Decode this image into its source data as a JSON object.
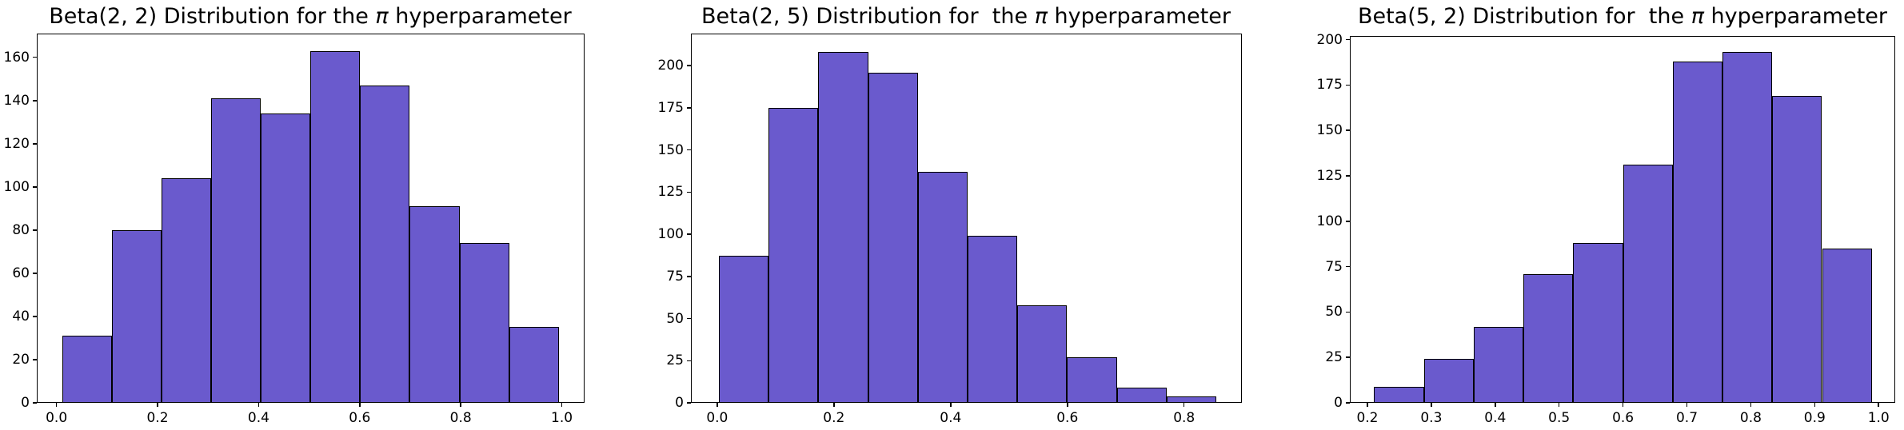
{
  "figure": {
    "background": "#ffffff",
    "text_color": "#000000"
  },
  "chart_data": [
    {
      "type": "bar",
      "chart_kind": "histogram",
      "title": "Beta(2, 2) Distribution for the π hyperparameter",
      "title_pre": "Beta(2, 2) Distribution for the ",
      "title_pi": "π",
      "title_post": " hyperparameter",
      "bar_color": "#6A5ACD",
      "bar_edge_color": "#000000",
      "bin_start": 0.011,
      "bin_width": 0.0983,
      "values": [
        31,
        80,
        104,
        141,
        134,
        163,
        147,
        91,
        74,
        35
      ],
      "x_ticks": [
        0.0,
        0.2,
        0.4,
        0.6,
        0.8,
        1.0
      ],
      "x_tick_labels": [
        "0.0",
        "0.2",
        "0.4",
        "0.6",
        "0.8",
        "1.0"
      ],
      "y_ticks": [
        0,
        20,
        40,
        60,
        80,
        100,
        120,
        140,
        160
      ],
      "xlim": [
        -0.039,
        1.045
      ],
      "ylim": [
        0,
        171
      ],
      "grid": false,
      "legend": null
    },
    {
      "type": "bar",
      "chart_kind": "histogram",
      "title": "Beta(2, 5) Distribution for  the π hyperparameter",
      "title_pre": "Beta(2, 5) Distribution for  the ",
      "title_pi": "π",
      "title_post": " hyperparameter",
      "bar_color": "#6A5ACD",
      "bar_edge_color": "#000000",
      "bin_start": 0.003,
      "bin_width": 0.0852,
      "values": [
        87,
        175,
        208,
        196,
        137,
        99,
        58,
        27,
        9,
        4
      ],
      "x_ticks": [
        0.0,
        0.2,
        0.4,
        0.6,
        0.8
      ],
      "x_tick_labels": [
        "0.0",
        "0.2",
        "0.4",
        "0.6",
        "0.8"
      ],
      "y_ticks": [
        0,
        25,
        50,
        75,
        100,
        125,
        150,
        175,
        200
      ],
      "xlim": [
        -0.045,
        0.899
      ],
      "ylim": [
        0,
        219
      ],
      "grid": false,
      "legend": null
    },
    {
      "type": "bar",
      "chart_kind": "histogram",
      "title": "Beta(5, 2) Distribution for  the π hyperparameter",
      "title_pre": "Beta(5, 2) Distribution for  the ",
      "title_pi": "π",
      "title_post": " hyperparameter",
      "bar_color": "#6A5ACD",
      "bar_edge_color": "#000000",
      "bin_start": 0.2104,
      "bin_width": 0.0779,
      "values": [
        9,
        24,
        42,
        71,
        88,
        131,
        188,
        193,
        169,
        85
      ],
      "x_ticks": [
        0.2,
        0.3,
        0.4,
        0.5,
        0.6,
        0.7,
        0.8,
        0.9,
        1.0
      ],
      "x_tick_labels": [
        "0.2",
        "0.3",
        "0.4",
        "0.5",
        "0.6",
        "0.7",
        "0.8",
        "0.9",
        "1.0"
      ],
      "y_ticks": [
        0,
        25,
        50,
        75,
        100,
        125,
        150,
        175,
        200
      ],
      "xlim": [
        0.1725,
        1.026
      ],
      "ylim": [
        0,
        202
      ],
      "grid": false,
      "legend": null
    }
  ]
}
